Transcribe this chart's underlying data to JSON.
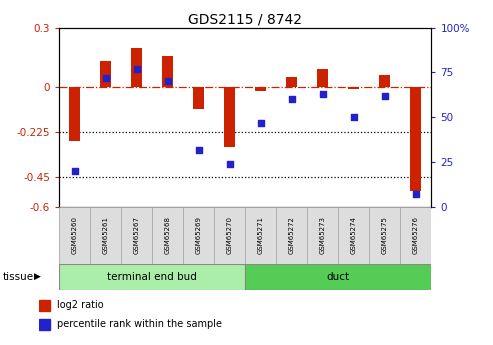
{
  "title": "GDS2115 / 8742",
  "samples": [
    "GSM65260",
    "GSM65261",
    "GSM65267",
    "GSM65268",
    "GSM65269",
    "GSM65270",
    "GSM65271",
    "GSM65272",
    "GSM65273",
    "GSM65274",
    "GSM65275",
    "GSM65276"
  ],
  "log2_ratio": [
    -0.27,
    0.13,
    0.2,
    0.16,
    -0.11,
    -0.3,
    -0.02,
    0.05,
    0.09,
    -0.01,
    0.06,
    -0.52
  ],
  "percentile_rank": [
    20,
    72,
    77,
    70,
    32,
    24,
    47,
    60,
    63,
    50,
    62,
    7
  ],
  "groups": [
    {
      "label": "terminal end bud",
      "start": 0,
      "end": 6,
      "color": "#aaeeaa"
    },
    {
      "label": "duct",
      "start": 6,
      "end": 12,
      "color": "#55cc55"
    }
  ],
  "ylim_left": [
    -0.6,
    0.3
  ],
  "ylim_right": [
    0,
    100
  ],
  "bar_color": "#cc2200",
  "dot_color": "#2222cc",
  "background_color": "#ffffff",
  "left_tick_vals": [
    0.3,
    0.0,
    -0.225,
    -0.45,
    -0.6
  ],
  "left_tick_labels": [
    "0.3",
    "0",
    "-0.225",
    "-0.45",
    "-0.6"
  ],
  "right_tick_vals": [
    100,
    75,
    50,
    25,
    0
  ],
  "right_tick_labels": [
    "100%",
    "75",
    "50",
    "25",
    "0"
  ],
  "tissue_label": "tissue",
  "legend_items": [
    {
      "label": "log2 ratio",
      "color": "#cc2200"
    },
    {
      "label": "percentile rank within the sample",
      "color": "#2222cc"
    }
  ],
  "bar_width": 0.35
}
